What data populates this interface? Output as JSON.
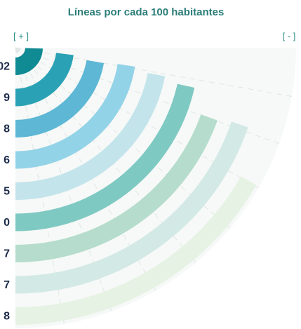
{
  "chart_data": {
    "type": "radial-bar",
    "title": "Líneas por cada 100 habitantes",
    "start_label": "[ + ]",
    "end_label": "[ - ]",
    "categories": [
      "02",
      "9",
      "8",
      "6",
      "5",
      "0",
      "7",
      "7",
      "8"
    ],
    "values": [
      98,
      92,
      89,
      90,
      88,
      86,
      78,
      79,
      67
    ],
    "colors": [
      "#108a93",
      "#2aa1b5",
      "#5db7d5",
      "#93d3e8",
      "#c4e4ec",
      "#7fc9c3",
      "#b5dccc",
      "#d3e9e6",
      "#e6f2e3"
    ],
    "xlim": [
      0,
      100
    ]
  }
}
